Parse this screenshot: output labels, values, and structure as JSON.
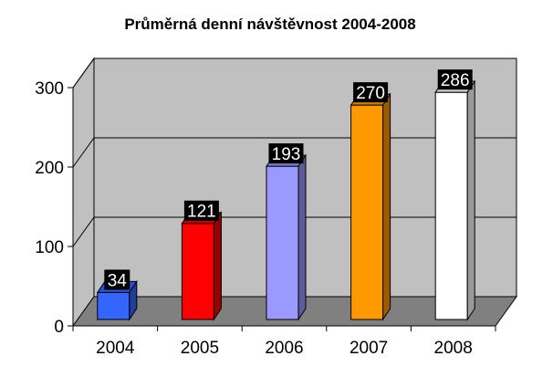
{
  "chart_data": {
    "type": "bar",
    "title": "Průměrná denní návštěvnost 2004-2008",
    "xlabel": "",
    "ylabel": "",
    "categories": [
      "2004",
      "2005",
      "2006",
      "2007",
      "2008"
    ],
    "values": [
      34,
      121,
      193,
      270,
      286
    ],
    "data_labels": [
      "34",
      "121",
      "193",
      "270",
      "286"
    ],
    "yticks": [
      "0",
      "100",
      "200",
      "300"
    ],
    "ylim": [
      0,
      300
    ],
    "grid": true,
    "three_d": true,
    "legend": "none",
    "bar_colors": [
      "#3366ff",
      "#ff0000",
      "#9999ff",
      "#ff9900",
      "#ffffff"
    ],
    "wall_color": "#c0c0c0",
    "floor_color": "#808080"
  }
}
